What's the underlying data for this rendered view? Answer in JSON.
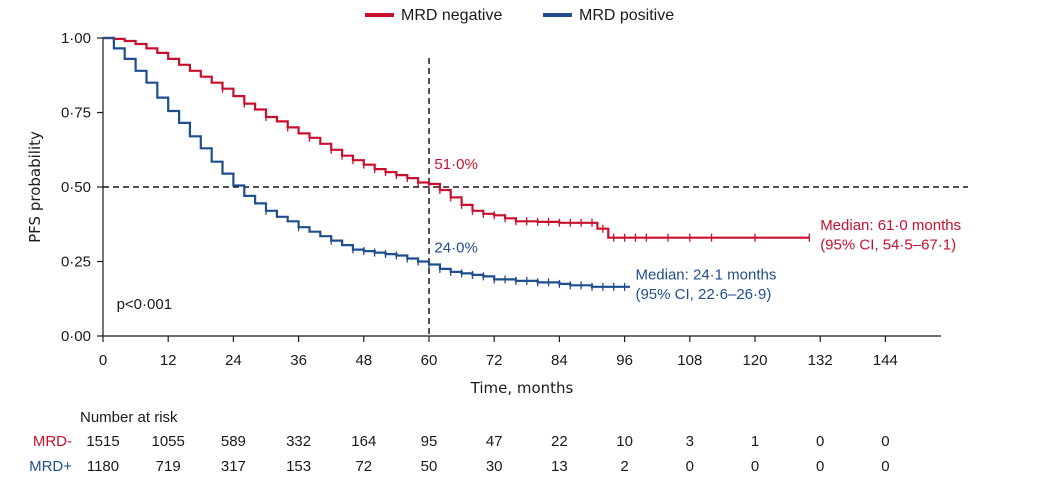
{
  "chart_data": {
    "type": "line",
    "xlabel": "Time, months",
    "ylabel": "PFS probability",
    "xlim": [
      0,
      154
    ],
    "ylim": [
      0,
      1
    ],
    "x_ticks": [
      0,
      12,
      24,
      36,
      48,
      60,
      72,
      84,
      96,
      108,
      120,
      132,
      144
    ],
    "y_ticks": [
      {
        "value": 0,
        "label": "0·00"
      },
      {
        "value": 0.25,
        "label": "0·25"
      },
      {
        "value": 0.5,
        "label": "0·50"
      },
      {
        "value": 0.75,
        "label": "0·75"
      },
      {
        "value": 1,
        "label": "1·00"
      }
    ],
    "reference_lines": {
      "x": 60,
      "y": 0.5,
      "style": "dashed"
    },
    "legend": {
      "position": "top-center"
    },
    "series": [
      {
        "name": "MRD negative",
        "risk_label": "MRD-",
        "color": "#c8102e",
        "points": [
          [
            0,
            1.0
          ],
          [
            2,
            0.997
          ],
          [
            4,
            0.99
          ],
          [
            6,
            0.98
          ],
          [
            8,
            0.965
          ],
          [
            10,
            0.95
          ],
          [
            12,
            0.93
          ],
          [
            14,
            0.91
          ],
          [
            16,
            0.89
          ],
          [
            18,
            0.87
          ],
          [
            20,
            0.85
          ],
          [
            22,
            0.83
          ],
          [
            24,
            0.805
          ],
          [
            26,
            0.78
          ],
          [
            28,
            0.76
          ],
          [
            30,
            0.735
          ],
          [
            32,
            0.72
          ],
          [
            34,
            0.7
          ],
          [
            36,
            0.68
          ],
          [
            38,
            0.665
          ],
          [
            40,
            0.645
          ],
          [
            42,
            0.625
          ],
          [
            44,
            0.605
          ],
          [
            46,
            0.59
          ],
          [
            48,
            0.575
          ],
          [
            50,
            0.56
          ],
          [
            52,
            0.55
          ],
          [
            54,
            0.54
          ],
          [
            56,
            0.53
          ],
          [
            58,
            0.515
          ],
          [
            60,
            0.51
          ],
          [
            62,
            0.49
          ],
          [
            64,
            0.465
          ],
          [
            66,
            0.44
          ],
          [
            68,
            0.42
          ],
          [
            70,
            0.41
          ],
          [
            72,
            0.405
          ],
          [
            74,
            0.395
          ],
          [
            76,
            0.385
          ],
          [
            80,
            0.383
          ],
          [
            84,
            0.38
          ],
          [
            88,
            0.38
          ],
          [
            90,
            0.38
          ],
          [
            91,
            0.36
          ],
          [
            93,
            0.33
          ],
          [
            100,
            0.33
          ],
          [
            110,
            0.33
          ],
          [
            120,
            0.33
          ],
          [
            130,
            0.33
          ]
        ],
        "censor_x": [
          22,
          26,
          30,
          34,
          38,
          42,
          44,
          46,
          48,
          50,
          52,
          54,
          56,
          58,
          60,
          62,
          64,
          66,
          68,
          70,
          72,
          74,
          76,
          78,
          80,
          82,
          84,
          86,
          88,
          90,
          92,
          94,
          96,
          98,
          100,
          104,
          108,
          112,
          120,
          130
        ]
      },
      {
        "name": "MRD positive",
        "risk_label": "MRD+",
        "color": "#1f4e8c",
        "points": [
          [
            0,
            1.0
          ],
          [
            2,
            0.965
          ],
          [
            4,
            0.93
          ],
          [
            6,
            0.89
          ],
          [
            8,
            0.85
          ],
          [
            10,
            0.8
          ],
          [
            12,
            0.755
          ],
          [
            14,
            0.715
          ],
          [
            16,
            0.67
          ],
          [
            18,
            0.63
          ],
          [
            20,
            0.585
          ],
          [
            22,
            0.545
          ],
          [
            24,
            0.505
          ],
          [
            26,
            0.47
          ],
          [
            28,
            0.445
          ],
          [
            30,
            0.42
          ],
          [
            32,
            0.4
          ],
          [
            34,
            0.385
          ],
          [
            36,
            0.365
          ],
          [
            38,
            0.35
          ],
          [
            40,
            0.335
          ],
          [
            42,
            0.32
          ],
          [
            44,
            0.305
          ],
          [
            46,
            0.29
          ],
          [
            48,
            0.285
          ],
          [
            50,
            0.28
          ],
          [
            52,
            0.275
          ],
          [
            54,
            0.27
          ],
          [
            56,
            0.26
          ],
          [
            58,
            0.25
          ],
          [
            60,
            0.24
          ],
          [
            62,
            0.225
          ],
          [
            64,
            0.215
          ],
          [
            66,
            0.21
          ],
          [
            68,
            0.205
          ],
          [
            70,
            0.2
          ],
          [
            72,
            0.19
          ],
          [
            76,
            0.185
          ],
          [
            80,
            0.18
          ],
          [
            84,
            0.175
          ],
          [
            86,
            0.17
          ],
          [
            90,
            0.165
          ],
          [
            96,
            0.165
          ],
          [
            97,
            0.165
          ]
        ],
        "censor_x": [
          30,
          36,
          42,
          46,
          48,
          50,
          52,
          54,
          56,
          58,
          60,
          62,
          64,
          66,
          68,
          70,
          72,
          74,
          76,
          78,
          80,
          82,
          84,
          86,
          88,
          90,
          92,
          94,
          96
        ]
      }
    ],
    "annotations": [
      {
        "text": "51·0%",
        "x": 61,
        "y": 0.56,
        "series": 0
      },
      {
        "text": "24·0%",
        "x": 61,
        "y": 0.28,
        "series": 1
      },
      {
        "text": "Median: 61·0 months",
        "x": 132,
        "y": 0.355,
        "series": 0
      },
      {
        "text": "(95% CI, 54·5–67·1)",
        "x": 132,
        "y": 0.29,
        "series": 0
      },
      {
        "text": "Median: 24·1 months",
        "x": 98,
        "y": 0.19,
        "series": 1
      },
      {
        "text": "(95% CI, 22·6–26·9)",
        "x": 98,
        "y": 0.125,
        "series": 1
      },
      {
        "text": "p<0·001",
        "x": 2.5,
        "y": 0.09,
        "series": -1
      }
    ],
    "risk_table": {
      "title": "Number at risk",
      "times": [
        0,
        12,
        24,
        36,
        48,
        60,
        72,
        84,
        96,
        108,
        120,
        132,
        144
      ],
      "rows": [
        {
          "label": "MRD-",
          "color": "#c8102e",
          "values": [
            "1515",
            "1055",
            "589",
            "332",
            "164",
            "95",
            "47",
            "22",
            "10",
            "3",
            "1",
            "0",
            "0"
          ]
        },
        {
          "label": "MRD+",
          "color": "#1f4e8c",
          "values": [
            "1180",
            "719",
            "317",
            "153",
            "72",
            "50",
            "30",
            "13",
            "2",
            "0",
            "0",
            "0",
            "0"
          ]
        }
      ]
    }
  }
}
